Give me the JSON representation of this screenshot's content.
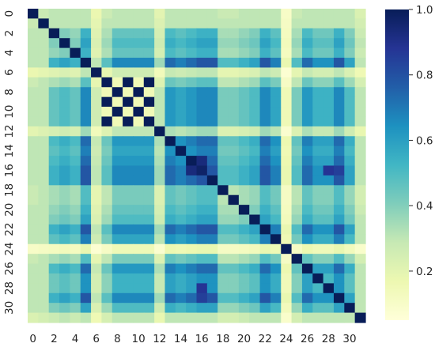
{
  "chart_data": {
    "type": "heatmap",
    "n": 32,
    "x_ticks": [
      "0",
      "2",
      "4",
      "6",
      "8",
      "10",
      "12",
      "14",
      "16",
      "18",
      "20",
      "22",
      "24",
      "26",
      "28",
      "30"
    ],
    "y_ticks": [
      "0",
      "2",
      "4",
      "6",
      "8",
      "10",
      "12",
      "14",
      "16",
      "18",
      "20",
      "22",
      "24",
      "26",
      "28",
      "30"
    ],
    "colorbar": {
      "min": 0.05,
      "max": 1.0,
      "ticks": [
        "0.2",
        "0.4",
        "0.6",
        "0.8",
        "1.0"
      ]
    },
    "colormap": "YlGnBu",
    "colormap_stops": [
      "#ffffd9",
      "#edf8b1",
      "#c7e9b4",
      "#7fcdbb",
      "#41b6c4",
      "#1d91c0",
      "#225ea8",
      "#253494",
      "#081d58"
    ],
    "profile": [
      0.55,
      0.6,
      0.65,
      0.7,
      0.65,
      0.9,
      0.4,
      0.75,
      1.0,
      1.0,
      1.0,
      1.0,
      0.45,
      0.85,
      0.8,
      0.85,
      0.9,
      0.9,
      0.6,
      0.6,
      0.65,
      0.7,
      0.9,
      0.8,
      0.25,
      0.6,
      0.85,
      0.75,
      0.75,
      0.9,
      0.7,
      0.5
    ],
    "cross_block": {
      "rows": [
        7,
        8,
        9,
        10,
        11
      ],
      "on_value": 1.0,
      "off_value": 0.15
    },
    "low_rows": [
      0,
      1,
      6,
      24,
      31
    ],
    "strong_cells": [
      [
        16,
        16,
        0.97
      ],
      [
        15,
        16,
        0.93
      ],
      [
        28,
        16,
        0.88
      ],
      [
        29,
        16,
        0.85
      ],
      [
        16,
        29,
        0.85
      ]
    ]
  }
}
